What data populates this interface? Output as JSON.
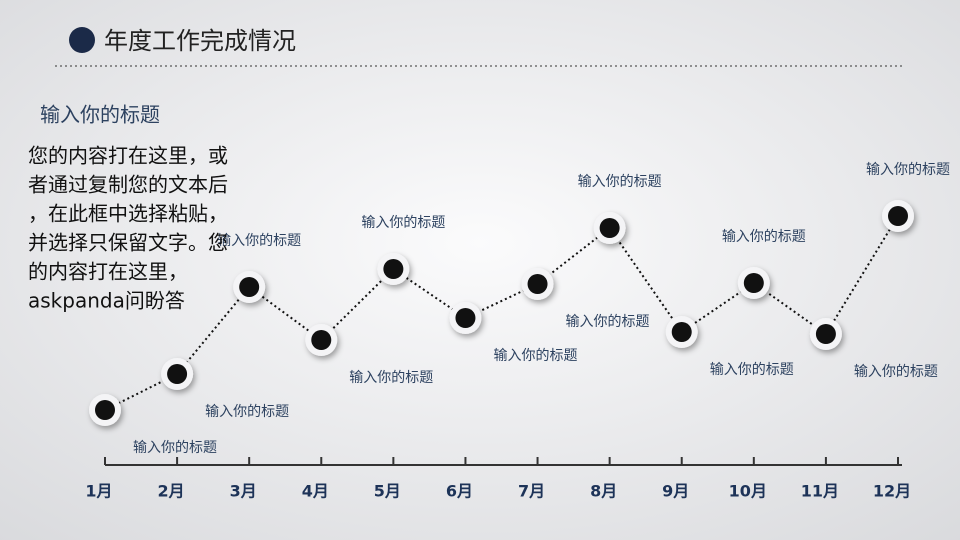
{
  "chart_data": {
    "type": "line",
    "title": "年度工作完成情况",
    "subtitle": "输入你的标题",
    "text_lines": [
      "您的内容打在这里，或",
      "者通过复制您的文本后",
      "，在此框中选择粘贴，",
      "并选择只保留文字。您",
      "的内容打在这里，",
      "askpanda问盼答"
    ],
    "categories": [
      "1月",
      "2月",
      "3月",
      "4月",
      "5月",
      "6月",
      "7月",
      "8月",
      "9月",
      "10月",
      "11月",
      "12月"
    ],
    "values": [
      55,
      91,
      178,
      125,
      196,
      147,
      181,
      237,
      133,
      182,
      131,
      249
    ],
    "point_labels": [
      "输入你的标题",
      "输入你的标题",
      "输入你的标题",
      "输入你的标题",
      "输入你的标题",
      "输入你的标题",
      "输入你的标题",
      "输入你的标题",
      "输入你的标题",
      "输入你的标题",
      "输入你的标题",
      "输入你的标题"
    ],
    "ylim": [
      0,
      280
    ],
    "color": "#111111"
  }
}
